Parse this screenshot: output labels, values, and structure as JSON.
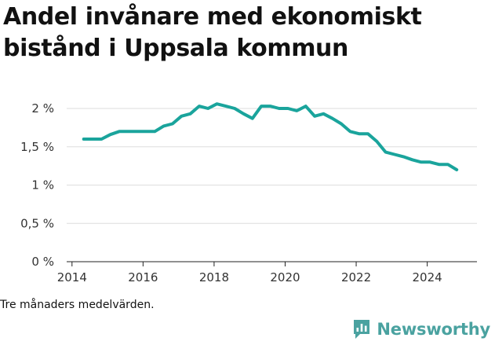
{
  "title": "Andel invånare med ekonomiskt bistånd i Uppsala kommun",
  "note": "Tre månaders medelvärden.",
  "brand": {
    "name": "Newsworthy",
    "icon": "bar-chart-speech-icon",
    "color": "#4aa2a0"
  },
  "colors": {
    "line": "#1aa49c",
    "grid": "#dddddd",
    "axis": "#222222"
  },
  "chart_data": {
    "type": "line",
    "title": "Andel invånare med ekonomiskt bistånd i Uppsala kommun",
    "xlabel": "",
    "ylabel": "",
    "xlim": [
      2013.85,
      2025.4
    ],
    "ylim": [
      0,
      2
    ],
    "y_ticks": [
      {
        "value": 0,
        "label": "0 %"
      },
      {
        "value": 0.5,
        "label": "0,5 %"
      },
      {
        "value": 1,
        "label": "1 %"
      },
      {
        "value": 1.5,
        "label": "1,5 %"
      },
      {
        "value": 2,
        "label": "2 %"
      }
    ],
    "x_ticks": [
      {
        "value": 2014,
        "label": "2014"
      },
      {
        "value": 2016,
        "label": "2016"
      },
      {
        "value": 2018,
        "label": "2018"
      },
      {
        "value": 2020,
        "label": "2020"
      },
      {
        "value": 2022,
        "label": "2022"
      },
      {
        "value": 2024,
        "label": "2024"
      }
    ],
    "series": [
      {
        "name": "Andel invånare med ekonomiskt bistånd",
        "x": [
          2014.33,
          2014.58,
          2014.83,
          2015.08,
          2015.33,
          2015.58,
          2015.83,
          2016.08,
          2016.33,
          2016.58,
          2016.83,
          2017.08,
          2017.33,
          2017.58,
          2017.83,
          2018.08,
          2018.33,
          2018.58,
          2018.83,
          2019.08,
          2019.33,
          2019.58,
          2019.83,
          2020.08,
          2020.33,
          2020.58,
          2020.83,
          2021.08,
          2021.33,
          2021.58,
          2021.83,
          2022.08,
          2022.33,
          2022.58,
          2022.83,
          2023.08,
          2023.33,
          2023.58,
          2023.83,
          2024.08,
          2024.33,
          2024.58,
          2024.83
        ],
        "values": [
          1.6,
          1.6,
          1.6,
          1.66,
          1.7,
          1.7,
          1.7,
          1.7,
          1.7,
          1.77,
          1.8,
          1.9,
          1.93,
          2.03,
          2.0,
          2.06,
          2.03,
          2.0,
          1.93,
          1.87,
          2.03,
          2.03,
          2.0,
          2.0,
          1.97,
          2.03,
          1.9,
          1.93,
          1.87,
          1.8,
          1.7,
          1.67,
          1.67,
          1.57,
          1.43,
          1.4,
          1.37,
          1.33,
          1.3,
          1.3,
          1.27,
          1.27,
          1.2
        ]
      }
    ]
  }
}
